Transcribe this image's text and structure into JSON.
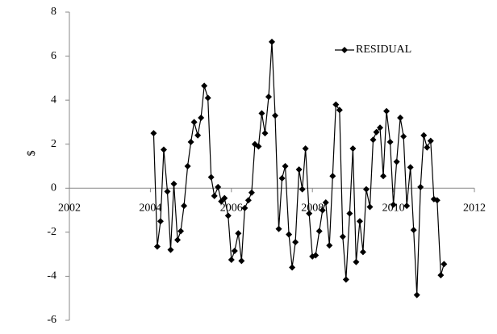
{
  "chart_data": {
    "type": "line",
    "ylabel": "$",
    "legend": "upper right",
    "grid": false,
    "xlim": [
      2002,
      2012
    ],
    "xticks": [
      2002,
      2004,
      2006,
      2008,
      2010,
      2012
    ],
    "ylim": [
      -6,
      8
    ],
    "yticks": [
      -6,
      -4,
      -2,
      0,
      2,
      4,
      6,
      8
    ],
    "x": [
      2004.08,
      2004.17,
      2004.25,
      2004.33,
      2004.42,
      2004.5,
      2004.58,
      2004.67,
      2004.75,
      2004.83,
      2004.92,
      2005,
      2005.08,
      2005.17,
      2005.25,
      2005.33,
      2005.42,
      2005.5,
      2005.58,
      2005.67,
      2005.75,
      2005.83,
      2005.92,
      2006,
      2006.08,
      2006.17,
      2006.25,
      2006.33,
      2006.42,
      2006.5,
      2006.58,
      2006.67,
      2006.75,
      2006.83,
      2006.92,
      2007,
      2007.08,
      2007.17,
      2007.25,
      2007.33,
      2007.42,
      2007.5,
      2007.58,
      2007.67,
      2007.75,
      2007.83,
      2007.92,
      2008,
      2008.08,
      2008.17,
      2008.25,
      2008.33,
      2008.42,
      2008.5,
      2008.58,
      2008.67,
      2008.75,
      2008.83,
      2008.92,
      2009,
      2009.08,
      2009.17,
      2009.25,
      2009.33,
      2009.42,
      2009.5,
      2009.58,
      2009.67,
      2009.75,
      2009.83,
      2009.92,
      2010,
      2010.08,
      2010.17,
      2010.25,
      2010.33,
      2010.42,
      2010.5,
      2010.58,
      2010.67,
      2010.75,
      2010.83,
      2010.92,
      2011,
      2011.08,
      2011.17,
      2011.25
    ],
    "series": [
      {
        "name": "RESIDUAL",
        "color": "#000000",
        "values": [
          2.5,
          -2.65,
          -1.5,
          1.75,
          -0.15,
          -2.8,
          0.2,
          -2.35,
          -1.95,
          -0.8,
          1.0,
          2.1,
          3.0,
          2.4,
          3.2,
          4.65,
          4.1,
          0.5,
          -0.35,
          0.05,
          -0.6,
          -0.45,
          -1.25,
          -3.25,
          -2.85,
          -2.05,
          -3.3,
          -0.9,
          -0.55,
          -0.2,
          2.0,
          1.9,
          3.4,
          2.5,
          4.15,
          6.65,
          3.3,
          -1.85,
          0.45,
          1.0,
          -2.1,
          -3.6,
          -2.45,
          0.85,
          -0.05,
          1.8,
          -1.15,
          -3.1,
          -3.05,
          -1.95,
          -1.0,
          -0.65,
          -2.6,
          0.55,
          3.8,
          3.55,
          -2.2,
          -4.15,
          -1.15,
          1.8,
          -3.35,
          -1.5,
          -2.9,
          -0.05,
          -0.85,
          2.2,
          2.55,
          2.75,
          0.55,
          3.5,
          2.1,
          -0.75,
          1.2,
          3.2,
          2.35,
          -0.8,
          0.95,
          -1.9,
          -4.85,
          0.05,
          2.4,
          1.85,
          2.15,
          -0.5,
          -0.55,
          -3.95,
          -3.45
        ]
      }
    ]
  }
}
